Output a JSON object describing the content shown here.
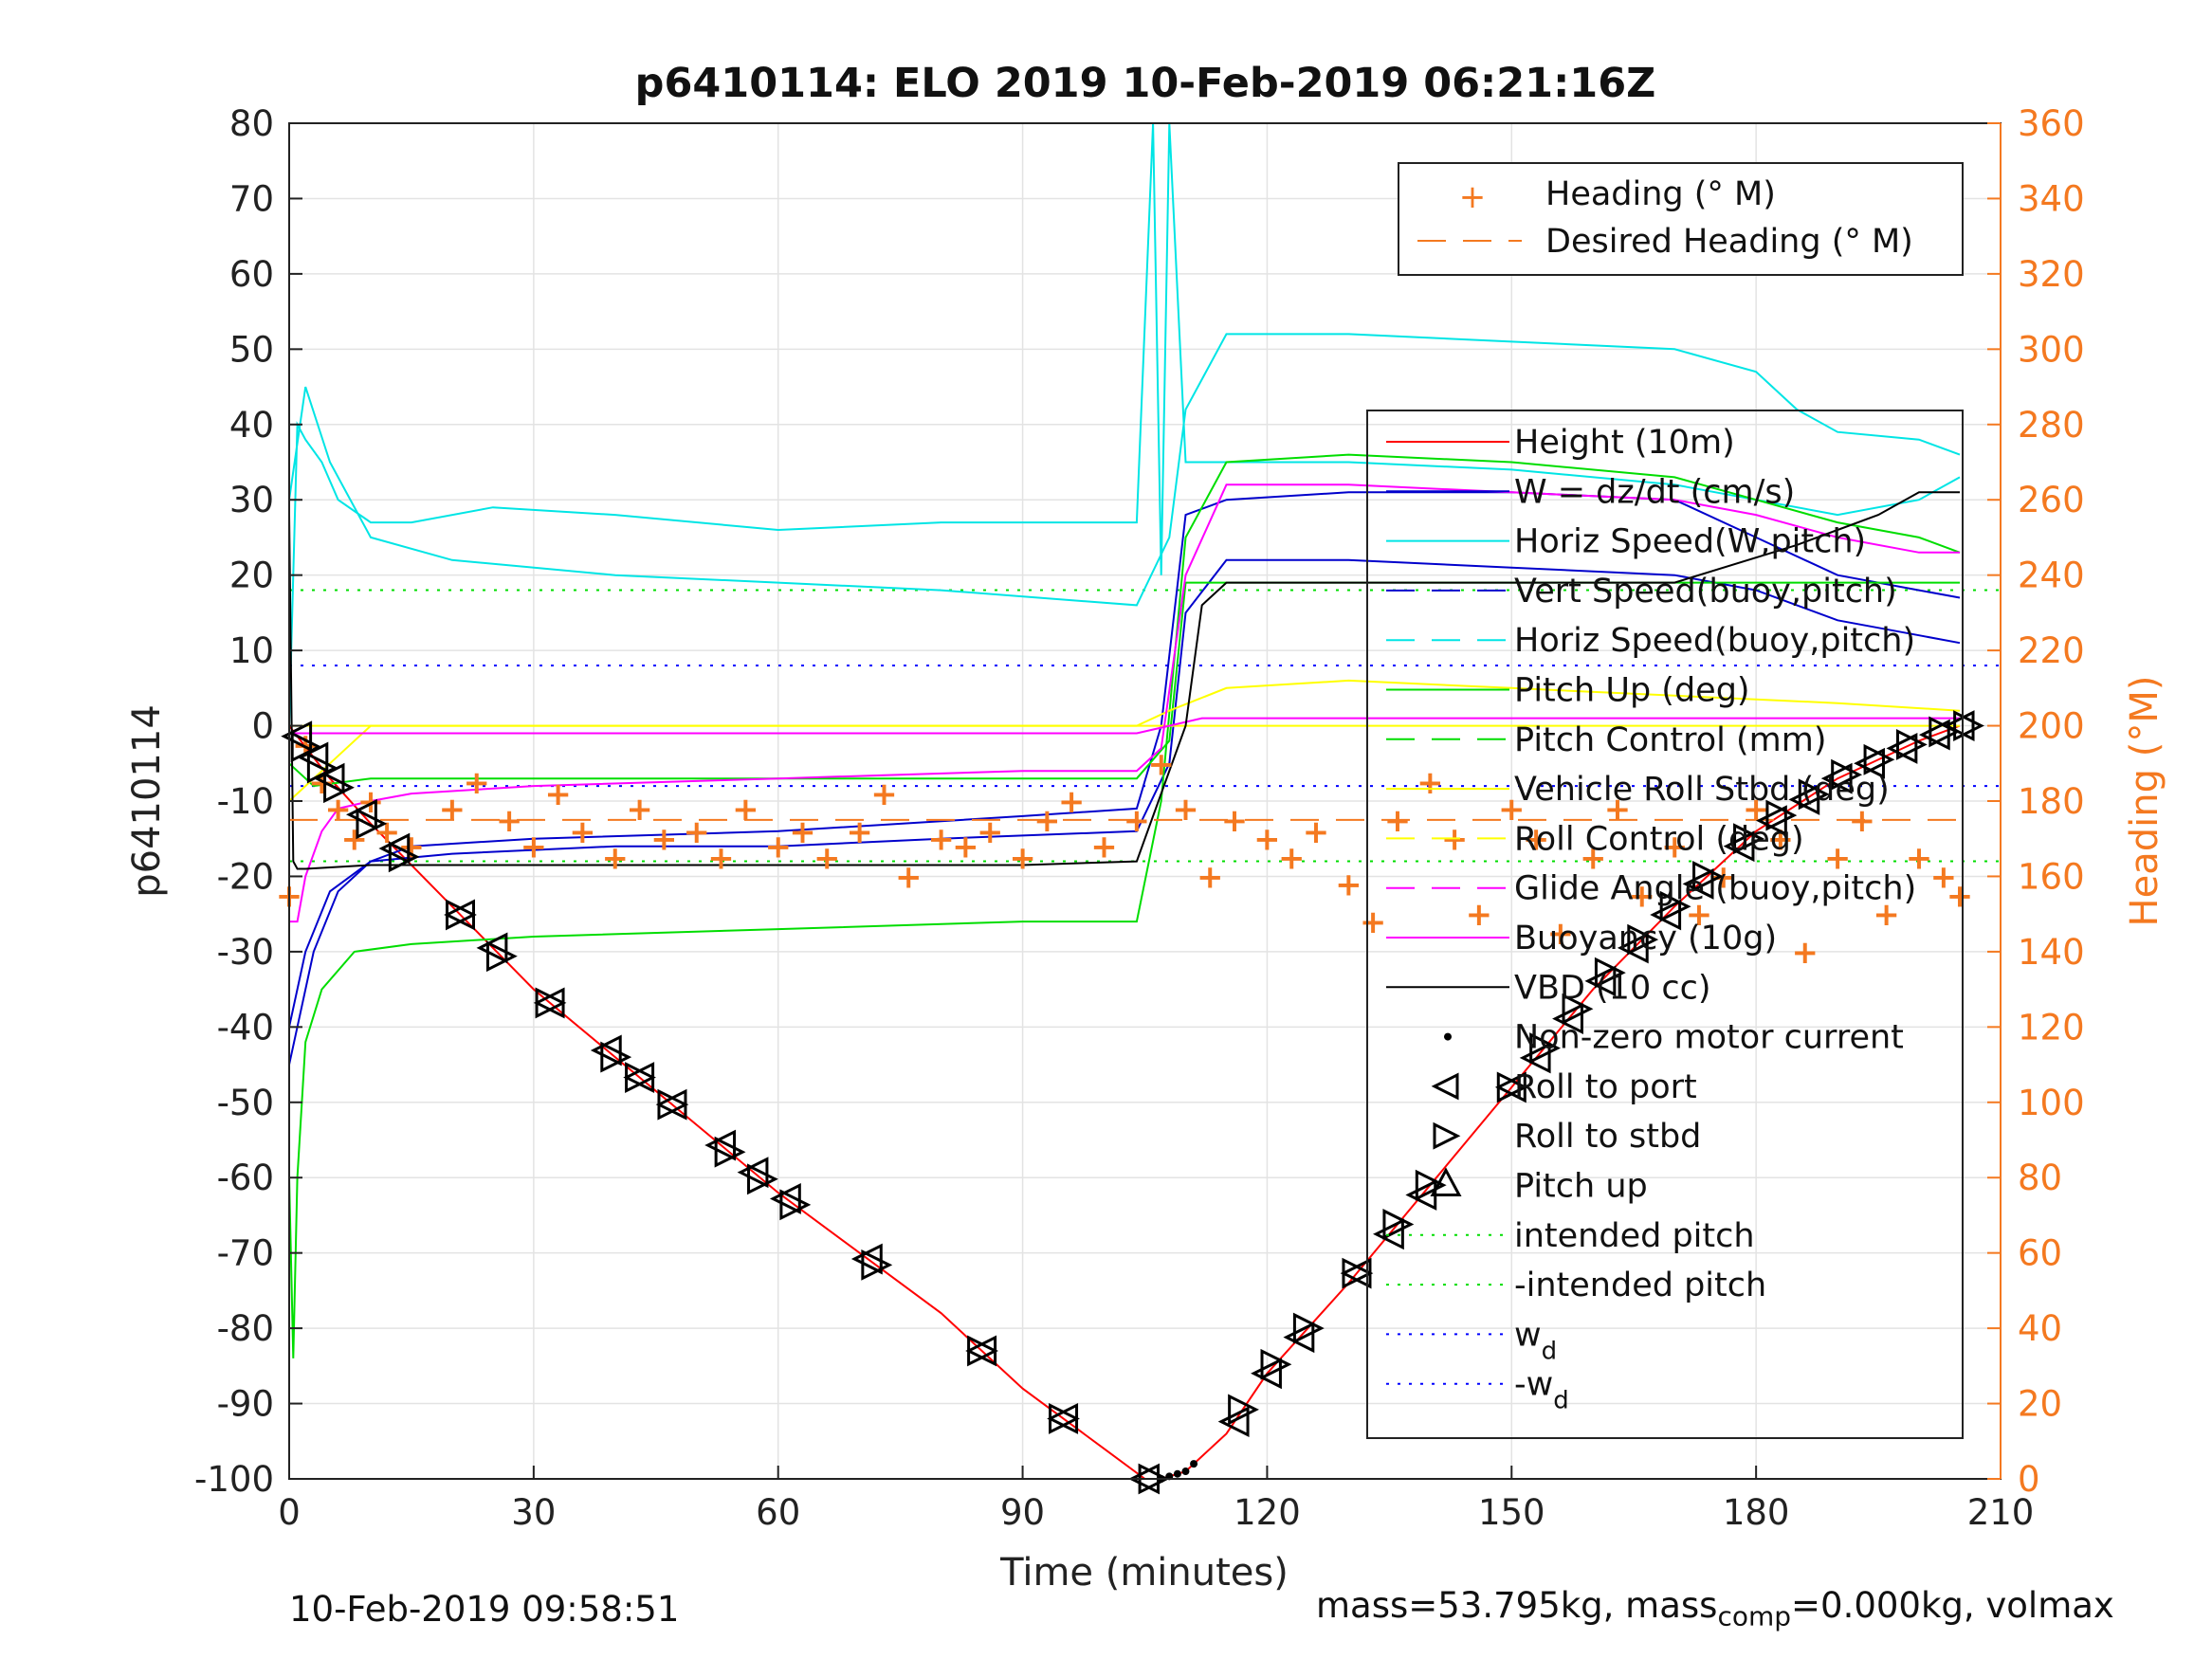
{
  "chart_data": {
    "type": "line",
    "title": "p6410114: ELO 2019 10-Feb-2019 06:21:16Z",
    "xlabel": "Time (minutes)",
    "ylabel_left": "p6410114",
    "ylabel_right": "Heading (°M)",
    "xlim": [
      0,
      210
    ],
    "ylim_left": [
      -100,
      80
    ],
    "ylim_right": [
      0,
      360
    ],
    "x_ticks": [
      "0",
      "30",
      "60",
      "90",
      "120",
      "150",
      "180",
      "210"
    ],
    "x_tick_values": [
      0,
      30,
      60,
      90,
      120,
      150,
      180,
      210
    ],
    "y_left_ticks": [
      "80",
      "70",
      "60",
      "50",
      "40",
      "30",
      "20",
      "10",
      "0",
      "-10",
      "-20",
      "-30",
      "-40",
      "-50",
      "-60",
      "-70",
      "-80",
      "-90",
      "-100"
    ],
    "y_left_tick_values": [
      80,
      70,
      60,
      50,
      40,
      30,
      20,
      10,
      0,
      -10,
      -20,
      -30,
      -40,
      -50,
      -60,
      -70,
      -80,
      -90,
      -100
    ],
    "y_right_ticks": [
      "360",
      "340",
      "320",
      "300",
      "280",
      "260",
      "240",
      "220",
      "200",
      "180",
      "160",
      "140",
      "120",
      "100",
      "80",
      "60",
      "40",
      "20",
      "0"
    ],
    "y_right_tick_values": [
      360,
      340,
      320,
      300,
      280,
      260,
      240,
      220,
      200,
      180,
      160,
      140,
      120,
      100,
      80,
      60,
      40,
      20,
      0
    ],
    "grid": true,
    "legend_top": {
      "placement": "top-right",
      "entries": [
        {
          "label": "Heading (° M)",
          "marker": "+",
          "color": "#f47920"
        },
        {
          "label": "Desired Heading (° M)",
          "style": "dashed",
          "color": "#f47920"
        }
      ]
    },
    "legend_main": {
      "placement": "right",
      "entries": [
        {
          "label": "Height (10m)",
          "color": "#ff0000",
          "style": "solid"
        },
        {
          "label": "W = dz/dt (cm/s)",
          "color": "#0000cc",
          "style": "solid"
        },
        {
          "label": "Horiz Speed(W,pitch)",
          "color": "#00e5e5",
          "style": "solid"
        },
        {
          "label": "Vert Speed(buoy,pitch)",
          "color": "#0000cc",
          "style": "dashed"
        },
        {
          "label": "Horiz Speed(buoy,pitch)",
          "color": "#00e5e5",
          "style": "dashed"
        },
        {
          "label": "Pitch Up (deg)",
          "color": "#00dd00",
          "style": "solid"
        },
        {
          "label": "Pitch Control (mm)",
          "color": "#00dd00",
          "style": "dashed"
        },
        {
          "label": "Vehicle Roll Stbd (deg)",
          "color": "#ffff00",
          "style": "solid"
        },
        {
          "label": "Roll Control (deg)",
          "color": "#ffff00",
          "style": "dashed"
        },
        {
          "label": "Glide Angle (buoy,pitch)",
          "color": "#ff00ff",
          "style": "dashed"
        },
        {
          "label": "Buoyancy (10g)",
          "color": "#ff00ff",
          "style": "solid"
        },
        {
          "label": "VBD (10 cc)",
          "color": "#000000",
          "style": "solid"
        },
        {
          "label": "Non-zero motor current",
          "color": "#000000",
          "marker": "dot"
        },
        {
          "label": "Roll to port",
          "color": "#000000",
          "marker": "triangle-left"
        },
        {
          "label": "Roll to stbd",
          "color": "#000000",
          "marker": "triangle-right"
        },
        {
          "label": "Pitch up",
          "color": "#000000",
          "marker": "triangle-up"
        },
        {
          "label": "intended pitch",
          "color": "#00dd00",
          "style": "dotted"
        },
        {
          "label": "-intended pitch",
          "color": "#00dd00",
          "style": "dotted"
        },
        {
          "label": "w",
          "sub": "d",
          "color": "#0000ff",
          "style": "dotted"
        },
        {
          "label": "-w",
          "sub": "d",
          "color": "#0000ff",
          "style": "dotted"
        }
      ]
    },
    "series": [
      {
        "name": "Height (10m)",
        "color": "#ff0000",
        "axis": "left",
        "x": [
          0,
          5,
          10,
          20,
          30,
          40,
          50,
          60,
          70,
          80,
          90,
          100,
          105,
          107,
          110,
          115,
          120,
          130,
          140,
          150,
          160,
          170,
          180,
          190,
          200,
          205
        ],
        "y": [
          0,
          -7,
          -13,
          -24,
          -35,
          -44,
          -53,
          -62,
          -70,
          -78,
          -88,
          -96,
          -100,
          -100,
          -99,
          -94,
          -86,
          -74,
          -61,
          -48,
          -35,
          -24,
          -14,
          -7,
          -2,
          0
        ]
      },
      {
        "name": "W = dz/dt (cm/s)",
        "color": "#0000cc",
        "axis": "left",
        "x": [
          0,
          1,
          3,
          6,
          10,
          15,
          30,
          60,
          90,
          104,
          107,
          110,
          115,
          130,
          150,
          170,
          180,
          190,
          200,
          205
        ],
        "y": [
          -45,
          -40,
          -30,
          -22,
          -18,
          -16,
          -15,
          -14,
          -12,
          -11,
          0,
          28,
          30,
          31,
          31,
          30,
          25,
          20,
          18,
          17
        ]
      },
      {
        "name": "Vert Speed(buoy,pitch)",
        "color": "#0000cc",
        "axis": "left",
        "x": [
          0,
          2,
          5,
          10,
          20,
          40,
          60,
          80,
          104,
          108,
          110,
          115,
          130,
          150,
          170,
          180,
          190,
          200,
          205
        ],
        "y": [
          -40,
          -30,
          -22,
          -18,
          -17,
          -16,
          -16,
          -15,
          -14,
          -5,
          15,
          22,
          22,
          21,
          20,
          18,
          14,
          12,
          11
        ]
      },
      {
        "name": "Horiz Speed(W,pitch)",
        "color": "#00e5e5",
        "axis": "left",
        "x": [
          0,
          1,
          2,
          4,
          6,
          10,
          15,
          25,
          40,
          60,
          80,
          90,
          104,
          106,
          107,
          108,
          110,
          115,
          130,
          150,
          170,
          180,
          190,
          200,
          205
        ],
        "y": [
          0,
          40,
          38,
          35,
          30,
          27,
          27,
          29,
          28,
          26,
          27,
          27,
          27,
          80,
          20,
          80,
          35,
          35,
          35,
          34,
          32,
          30,
          28,
          30,
          33
        ]
      },
      {
        "name": "Horiz Speed(buoy,pitch)",
        "color": "#00e5e5",
        "axis": "left",
        "x": [
          0,
          2,
          5,
          10,
          20,
          40,
          60,
          80,
          104,
          108,
          110,
          115,
          130,
          150,
          170,
          180,
          185,
          190,
          200,
          205
        ],
        "y": [
          30,
          45,
          35,
          25,
          22,
          20,
          19,
          18,
          16,
          25,
          42,
          52,
          52,
          51,
          50,
          47,
          42,
          39,
          38,
          36
        ]
      },
      {
        "name": "Pitch Up (deg)",
        "color": "#00dd00",
        "axis": "left",
        "x": [
          0,
          0.5,
          1,
          2,
          4,
          8,
          15,
          30,
          60,
          90,
          104,
          107,
          110,
          115,
          130,
          150,
          170,
          180,
          190,
          200,
          205
        ],
        "y": [
          -60,
          -84,
          -60,
          -42,
          -35,
          -30,
          -29,
          -28,
          -27,
          -26,
          -26,
          -10,
          25,
          35,
          36,
          35,
          33,
          30,
          27,
          25,
          23
        ]
      },
      {
        "name": "Pitch Control (mm)",
        "color": "#00dd00",
        "axis": "left",
        "x": [
          0,
          3,
          10,
          30,
          60,
          90,
          104,
          108,
          110,
          130,
          150,
          170,
          190,
          205
        ],
        "y": [
          -5,
          -8,
          -7,
          -7,
          -7,
          -7,
          -7,
          -2,
          19,
          19,
          19,
          19,
          19,
          19
        ]
      },
      {
        "name": "Vehicle Roll Stbd (deg)",
        "color": "#ffff00",
        "axis": "left",
        "x": [
          0,
          5,
          10,
          20,
          30,
          40,
          50,
          60,
          70,
          80,
          90,
          104,
          108,
          115,
          130,
          150,
          170,
          190,
          205
        ],
        "y": [
          -10,
          -5,
          0,
          0,
          0,
          0,
          0,
          0,
          0,
          0,
          0,
          0,
          2,
          5,
          6,
          5,
          4,
          3,
          2
        ]
      },
      {
        "name": "Roll Control (deg)",
        "color": "#ffff00",
        "axis": "left",
        "x": [
          0,
          5,
          20,
          50,
          80,
          104,
          110,
          130,
          160,
          190,
          205
        ],
        "y": [
          0,
          0,
          0,
          0,
          0,
          0,
          0,
          0,
          0,
          0,
          0
        ]
      },
      {
        "name": "Glide Angle (buoy,pitch)",
        "color": "#ff00ff",
        "axis": "left",
        "x": [
          0,
          2,
          5,
          10,
          30,
          60,
          90,
          104,
          108,
          112,
          130,
          150,
          170,
          190,
          205
        ],
        "y": [
          -1,
          -1,
          -1,
          -1,
          -1,
          -1,
          -1,
          -1,
          0,
          1,
          1,
          1,
          1,
          1,
          1
        ]
      },
      {
        "name": "Buoyancy (10g)",
        "color": "#ff00ff",
        "axis": "left",
        "x": [
          0,
          1,
          2,
          4,
          6,
          10,
          15,
          30,
          60,
          90,
          104,
          107,
          110,
          115,
          130,
          150,
          170,
          180,
          190,
          200,
          205
        ],
        "y": [
          -26,
          -26,
          -20,
          -14,
          -11,
          -10,
          -9,
          -8,
          -7,
          -6,
          -6,
          -3,
          20,
          32,
          32,
          31,
          30,
          28,
          25,
          23,
          23
        ]
      },
      {
        "name": "VBD (10 cc)",
        "color": "#000000",
        "axis": "left",
        "x": [
          0,
          0.5,
          1,
          2,
          10,
          30,
          60,
          90,
          104,
          110,
          112,
          115,
          130,
          150,
          170,
          185,
          190,
          195,
          200,
          205
        ],
        "y": [
          28,
          -18,
          -19,
          -19,
          -18.5,
          -18.5,
          -18.5,
          -18.5,
          -18,
          0,
          16,
          19,
          19,
          19,
          19,
          24,
          26,
          28,
          31,
          31
        ]
      },
      {
        "name": "Heading (° M)",
        "color": "#f47920",
        "axis": "right",
        "marker": "+",
        "x": [
          0,
          2,
          4,
          6,
          8,
          10,
          12,
          15,
          20,
          23,
          27,
          30,
          33,
          36,
          40,
          43,
          46,
          50,
          53,
          56,
          60,
          63,
          66,
          70,
          73,
          76,
          80,
          83,
          86,
          90,
          93,
          96,
          100,
          104,
          107,
          110,
          113,
          116,
          120,
          123,
          126,
          130,
          133,
          136,
          140,
          143,
          146,
          150,
          153,
          156,
          160,
          163,
          166,
          170,
          173,
          176,
          180,
          183,
          186,
          190,
          193,
          196,
          200,
          203,
          205
        ],
        "y": [
          155,
          195,
          185,
          178,
          170,
          180,
          172,
          168,
          178,
          185,
          175,
          168,
          182,
          172,
          165,
          178,
          170,
          172,
          165,
          178,
          168,
          172,
          165,
          172,
          182,
          160,
          170,
          168,
          172,
          165,
          175,
          180,
          168,
          175,
          190,
          178,
          160,
          175,
          170,
          165,
          172,
          158,
          148,
          175,
          185,
          170,
          150,
          178,
          170,
          145,
          165,
          178,
          155,
          168,
          150,
          160,
          178,
          170,
          140,
          165,
          175,
          150,
          165,
          160,
          155
        ]
      },
      {
        "name": "Desired Heading (° M)",
        "color": "#f47920",
        "axis": "right",
        "style": "dashed",
        "x": [
          0,
          205
        ],
        "y": [
          175,
          175
        ]
      }
    ],
    "reference_lines": [
      {
        "name": "intended pitch",
        "value": 18,
        "color": "#00dd00",
        "style": "dotted"
      },
      {
        "name": "-intended pitch",
        "value": -18,
        "color": "#00dd00",
        "style": "dotted"
      },
      {
        "name": "w_d",
        "value": 8,
        "color": "#0000ff",
        "style": "dotted"
      },
      {
        "name": "-w_d",
        "value": -8,
        "color": "#0000ff",
        "style": "dotted"
      }
    ],
    "markers": {
      "roll_to_port_x": [
        1,
        3,
        5,
        9,
        13,
        21,
        25,
        32,
        39,
        43,
        47,
        53,
        57,
        61,
        71,
        85,
        95,
        105,
        116,
        120,
        124,
        131,
        135,
        139,
        150,
        153,
        157,
        161,
        165,
        169,
        173,
        178,
        182,
        186,
        190,
        194,
        198,
        202,
        205
      ],
      "roll_to_stbd_x": [
        2,
        4,
        6,
        10,
        14,
        21,
        26,
        32,
        40,
        43,
        47,
        54,
        58,
        62,
        72,
        85,
        95,
        106,
        117,
        121,
        125,
        131,
        136,
        140,
        150,
        154,
        158,
        162,
        166,
        170,
        174,
        179,
        183,
        187,
        191,
        195,
        199,
        203,
        206
      ],
      "motor_current_x": [
        107,
        108,
        109,
        110,
        111
      ]
    }
  },
  "footer": {
    "timestamp": "10-Feb-2019 09:58:51",
    "mass_text_a": "mass=53.795kg, mass",
    "mass_sub": "comp",
    "mass_text_b": "=0.000kg, volmax"
  }
}
